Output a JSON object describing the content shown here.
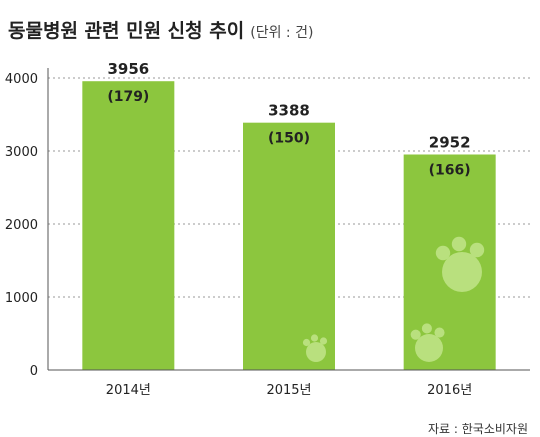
{
  "chart_data": {
    "type": "bar",
    "title": "동물병원 관련 민원 신청 추이",
    "unit_note": "(단위 : 건)",
    "categories": [
      "2014년",
      "2015년",
      "2016년"
    ],
    "values": [
      3956,
      3388,
      2952
    ],
    "sub_labels": [
      "(179)",
      "(150)",
      "(166)"
    ],
    "yticks": [
      0,
      1000,
      2000,
      3000,
      4000
    ],
    "ylim": [
      0,
      4000
    ],
    "grid": true,
    "source": "자료 : 한국소비자원",
    "colors": {
      "bar": "#8cc63e",
      "grid": "#9a9a9a",
      "axis": "#555555",
      "text": "#222222",
      "paw": "#b9e07e"
    }
  }
}
